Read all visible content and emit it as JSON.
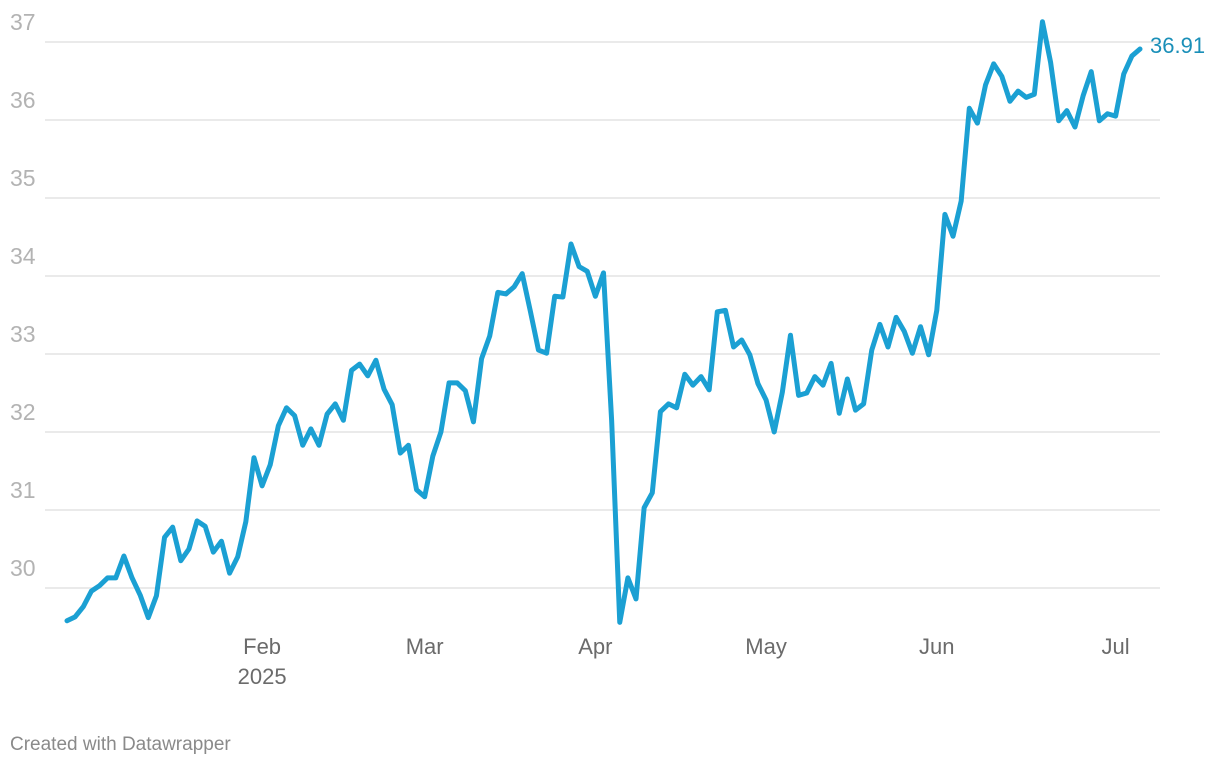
{
  "chart_data": {
    "type": "line",
    "categories": [
      null,
      null,
      null,
      null,
      null,
      null,
      null,
      null,
      null,
      null,
      null,
      null,
      null,
      null,
      null,
      null,
      null,
      null,
      null,
      null,
      null,
      null,
      null,
      null,
      "Feb",
      null,
      null,
      null,
      null,
      null,
      null,
      null,
      null,
      null,
      null,
      null,
      null,
      null,
      null,
      null,
      null,
      null,
      null,
      null,
      "Mar",
      null,
      null,
      null,
      null,
      null,
      null,
      null,
      null,
      null,
      null,
      null,
      null,
      null,
      null,
      null,
      null,
      null,
      null,
      null,
      null,
      "Apr",
      null,
      null,
      null,
      null,
      null,
      null,
      null,
      null,
      null,
      null,
      null,
      null,
      null,
      null,
      null,
      null,
      null,
      null,
      null,
      null,
      "May",
      null,
      null,
      null,
      null,
      null,
      null,
      null,
      null,
      null,
      null,
      null,
      null,
      null,
      null,
      null,
      null,
      null,
      null,
      null,
      null,
      "Jun",
      null,
      null,
      null,
      null,
      null,
      null,
      null,
      null,
      null,
      null,
      null,
      null,
      null,
      null,
      null,
      null,
      null,
      null,
      null,
      null,
      null,
      "Jul",
      null,
      null,
      null
    ],
    "x_year": "2025",
    "series": [
      {
        "color": "#1ba0d3",
        "values": [
          29.58,
          29.63,
          29.76,
          29.96,
          30.03,
          30.13,
          30.13,
          30.41,
          30.13,
          29.91,
          29.62,
          29.9,
          30.65,
          30.78,
          30.35,
          30.5,
          30.86,
          30.79,
          30.46,
          30.6,
          30.19,
          30.4,
          30.85,
          31.67,
          31.31,
          31.58,
          32.08,
          32.31,
          32.21,
          31.83,
          32.04,
          31.83,
          32.23,
          32.36,
          32.15,
          32.79,
          32.87,
          32.72,
          32.92,
          32.55,
          32.35,
          31.73,
          31.83,
          31.26,
          31.17,
          31.69,
          32.0,
          32.63,
          32.63,
          32.53,
          32.13,
          32.94,
          33.23,
          33.79,
          33.77,
          33.86,
          34.03,
          33.55,
          33.05,
          33.01,
          33.74,
          33.73,
          34.41,
          34.12,
          34.06,
          33.74,
          34.04,
          32.15,
          29.56,
          30.13,
          29.86,
          31.03,
          31.22,
          32.26,
          32.36,
          32.31,
          32.74,
          32.6,
          32.71,
          32.54,
          33.54,
          33.56,
          33.09,
          33.18,
          32.99,
          32.62,
          32.41,
          32.0,
          32.51,
          33.24,
          32.47,
          32.5,
          32.71,
          32.6,
          32.88,
          32.24,
          32.68,
          32.28,
          32.36,
          33.05,
          33.38,
          33.09,
          33.47,
          33.29,
          33.01,
          33.35,
          32.99,
          33.56,
          34.79,
          34.51,
          34.96,
          36.15,
          35.96,
          36.45,
          36.72,
          36.56,
          36.24,
          36.37,
          36.29,
          36.33,
          37.26,
          36.74,
          35.99,
          36.12,
          35.91,
          36.31,
          36.62,
          35.99,
          36.08,
          36.05,
          36.59,
          36.82,
          36.91
        ]
      }
    ],
    "ylim": [
      29.5,
      37.3
    ],
    "yticks": [
      30,
      31,
      32,
      33,
      34,
      35,
      36,
      37
    ],
    "grid": true,
    "end_label_color": "#1a8fb8",
    "credit": "Created with Datawrapper"
  }
}
